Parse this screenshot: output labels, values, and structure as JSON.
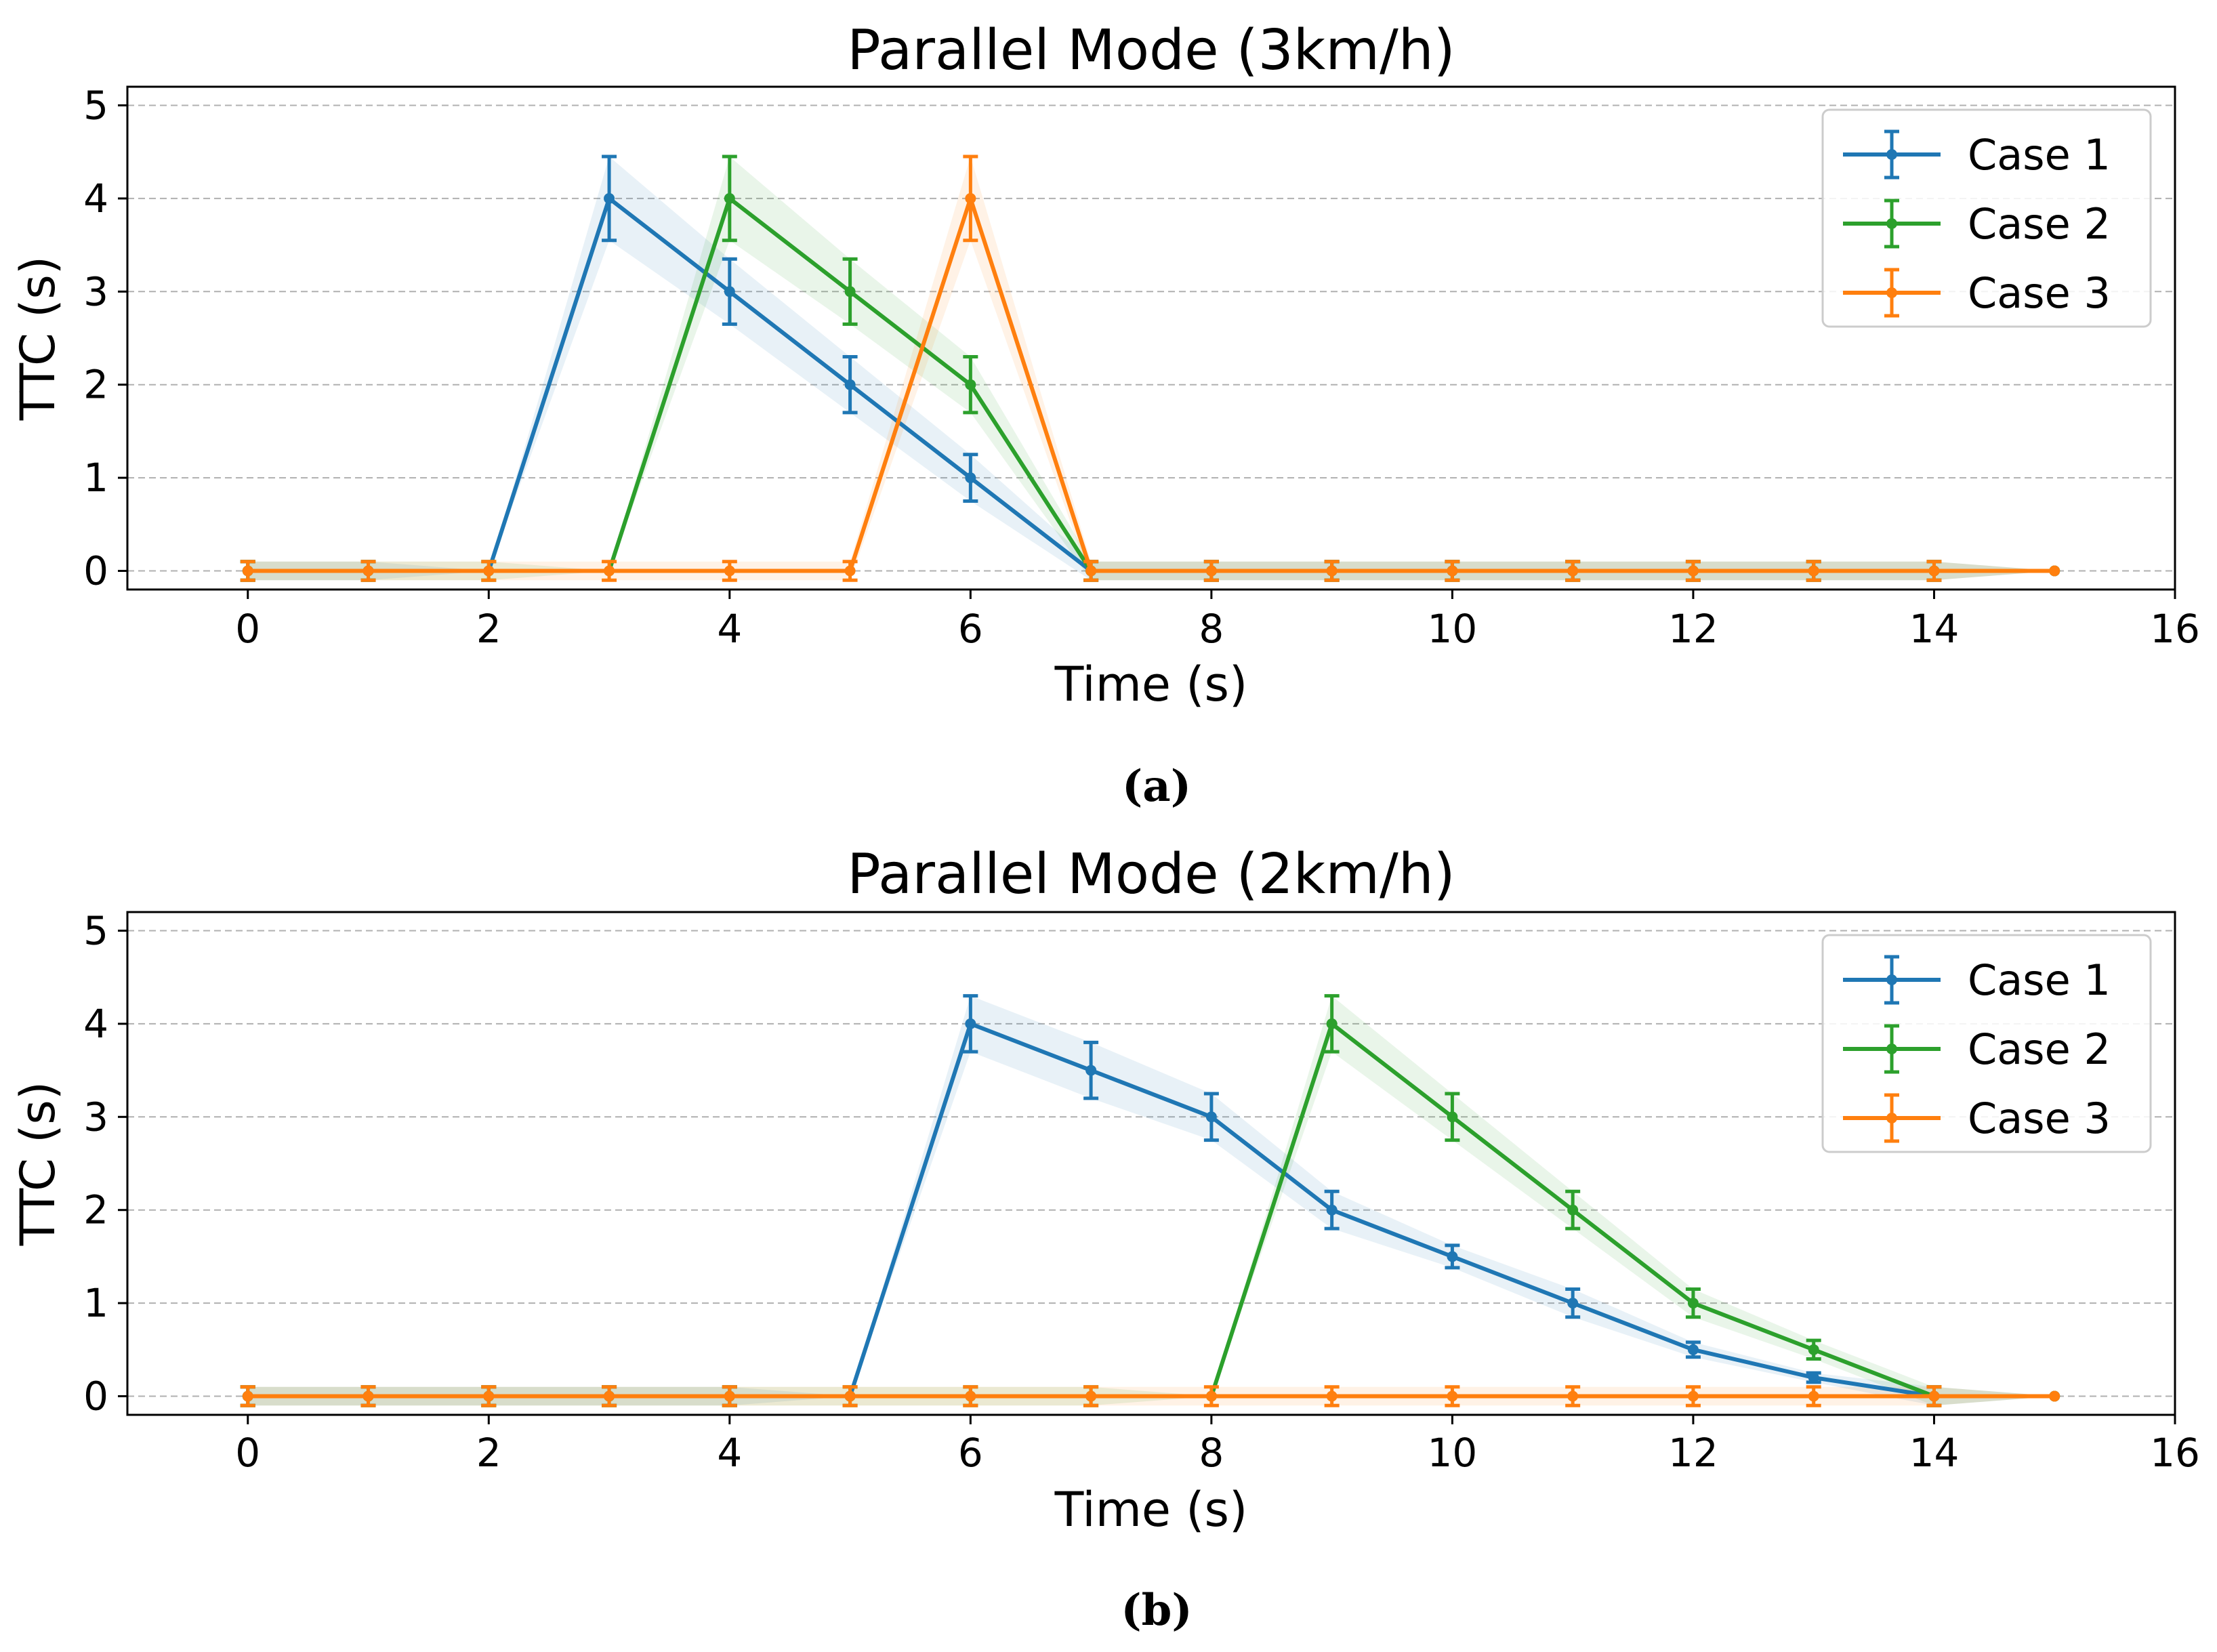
{
  "chart_data": [
    {
      "type": "line",
      "title": "Parallel Mode (3km/h)",
      "xlabel": "Time (s)",
      "ylabel": "TTC (s)",
      "caption": "(a)",
      "xlim": [
        -1,
        16
      ],
      "ylim": [
        -0.2,
        5.2
      ],
      "xticks": [
        0,
        2,
        4,
        6,
        8,
        10,
        12,
        14,
        16
      ],
      "yticks": [
        0,
        1,
        2,
        3,
        4,
        5
      ],
      "grid": "y-dashed",
      "legend": "top-right",
      "x": [
        0,
        1,
        2,
        3,
        4,
        5,
        6,
        7,
        8,
        9,
        10,
        11,
        12,
        13,
        14,
        15
      ],
      "series": [
        {
          "name": "Case 1",
          "color": "#1f77b4",
          "values": [
            0,
            0,
            0,
            4,
            3,
            2,
            1,
            0,
            0,
            0,
            0,
            0,
            0,
            0,
            0,
            0
          ],
          "err": [
            0.1,
            0.1,
            0,
            0.45,
            0.35,
            0.3,
            0.25,
            0.1,
            0.1,
            0.1,
            0.1,
            0.1,
            0.1,
            0.1,
            0.1,
            0
          ]
        },
        {
          "name": "Case 2",
          "color": "#2ca02c",
          "values": [
            0,
            0,
            0,
            0,
            4,
            3,
            2,
            0,
            0,
            0,
            0,
            0,
            0,
            0,
            0,
            0
          ],
          "err": [
            0.1,
            0.1,
            0.1,
            0,
            0.45,
            0.35,
            0.3,
            0.1,
            0.1,
            0.1,
            0.1,
            0.1,
            0.1,
            0.1,
            0.1,
            0
          ]
        },
        {
          "name": "Case 3",
          "color": "#ff7f0e",
          "values": [
            0,
            0,
            0,
            0,
            0,
            0,
            4,
            0,
            0,
            0,
            0,
            0,
            0,
            0,
            0,
            0
          ],
          "err": [
            0.1,
            0.1,
            0.1,
            0.1,
            0.1,
            0.1,
            0.45,
            0.1,
            0.1,
            0.1,
            0.1,
            0.1,
            0.1,
            0.1,
            0.1,
            0
          ]
        }
      ]
    },
    {
      "type": "line",
      "title": "Parallel Mode (2km/h)",
      "xlabel": "Time (s)",
      "ylabel": "TTC (s)",
      "caption": "(b)",
      "xlim": [
        -1,
        16
      ],
      "ylim": [
        -0.2,
        5.2
      ],
      "xticks": [
        0,
        2,
        4,
        6,
        8,
        10,
        12,
        14,
        16
      ],
      "yticks": [
        0,
        1,
        2,
        3,
        4,
        5
      ],
      "grid": "y-dashed",
      "legend": "top-right",
      "x": [
        0,
        1,
        2,
        3,
        4,
        5,
        6,
        7,
        8,
        9,
        10,
        11,
        12,
        13,
        14,
        15
      ],
      "series": [
        {
          "name": "Case 1",
          "color": "#1f77b4",
          "values": [
            0,
            0,
            0,
            0,
            0,
            0,
            4,
            3.5,
            3,
            2,
            1.5,
            1,
            0.5,
            0.2,
            0,
            0
          ],
          "err": [
            0.1,
            0.1,
            0.1,
            0.1,
            0.1,
            0,
            0.3,
            0.3,
            0.25,
            0.2,
            0.12,
            0.15,
            0.08,
            0.05,
            0.1,
            0
          ]
        },
        {
          "name": "Case 2",
          "color": "#2ca02c",
          "values": [
            0,
            0,
            0,
            0,
            0,
            0,
            0,
            0,
            0,
            4,
            3,
            2,
            1,
            0.5,
            0,
            0
          ],
          "err": [
            0.1,
            0.1,
            0.1,
            0.1,
            0.1,
            0.1,
            0.1,
            0.1,
            0,
            0.3,
            0.25,
            0.2,
            0.15,
            0.1,
            0.1,
            0
          ]
        },
        {
          "name": "Case 3",
          "color": "#ff7f0e",
          "values": [
            0,
            0,
            0,
            0,
            0,
            0,
            0,
            0,
            0,
            0,
            0,
            0,
            0,
            0,
            0,
            0
          ],
          "err": [
            0.1,
            0.1,
            0.1,
            0.1,
            0.1,
            0.1,
            0.1,
            0.1,
            0.1,
            0.1,
            0.1,
            0.1,
            0.1,
            0.1,
            0.1,
            0
          ]
        }
      ]
    }
  ]
}
